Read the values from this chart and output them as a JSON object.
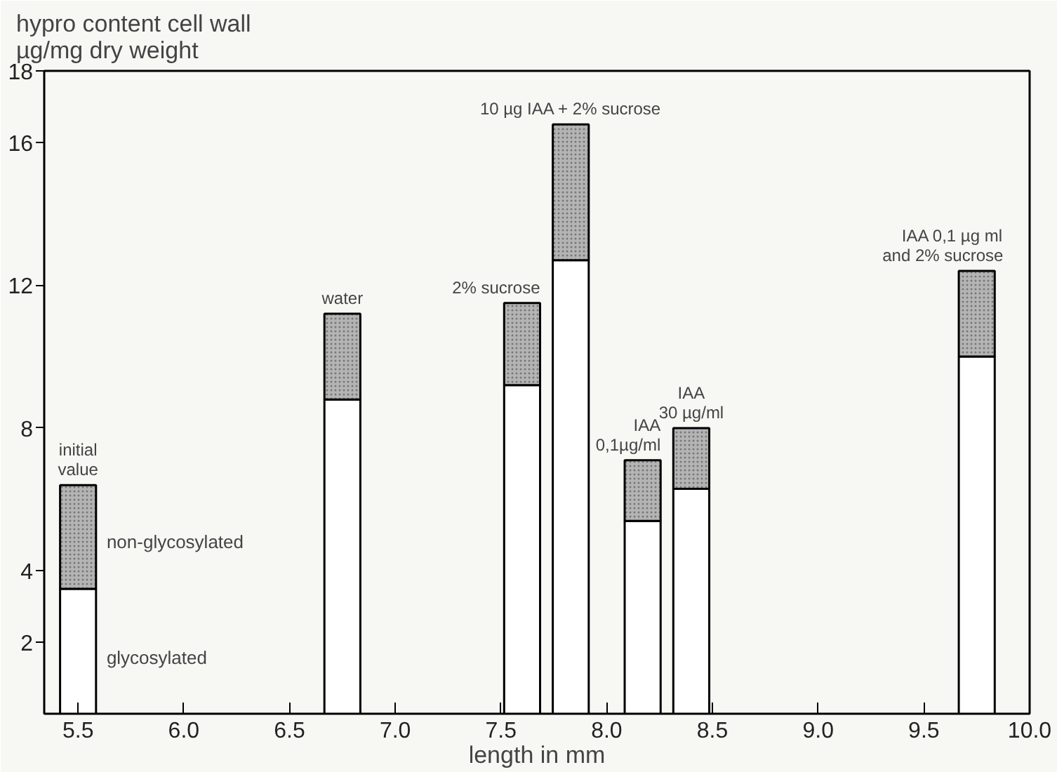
{
  "chart_data": {
    "type": "bar",
    "stacked": true,
    "ylabel": "hypro content cell wall\n   µg/mg dry weight",
    "xlabel": "length in mm",
    "x": [
      5.5,
      6.75,
      7.6,
      7.83,
      8.17,
      8.4,
      9.75
    ],
    "series": [
      {
        "name": "glycosylated",
        "color": "#ffffff",
        "values": [
          3.5,
          8.8,
          9.2,
          12.7,
          5.4,
          6.3,
          10.0
        ]
      },
      {
        "name": "non-glycosylated",
        "color": "#b4b4b4",
        "values": [
          2.9,
          2.4,
          2.3,
          3.8,
          1.7,
          1.7,
          2.4
        ]
      }
    ],
    "xlim": [
      5.34,
      10.0
    ],
    "ylim": [
      0,
      18
    ],
    "xticks": [
      {
        "value": 5.5,
        "label": "5.5"
      },
      {
        "value": 6.0,
        "label": "6.0"
      },
      {
        "value": 6.5,
        "label": "6.5"
      },
      {
        "value": 7.0,
        "label": "7.0"
      },
      {
        "value": 7.5,
        "label": "7.5"
      },
      {
        "value": 8.0,
        "label": "8.0"
      },
      {
        "value": 8.5,
        "label": "8.5"
      },
      {
        "value": 9.0,
        "label": "9.0"
      },
      {
        "value": 9.5,
        "label": "9.5"
      },
      {
        "value": 10.0,
        "label": "10.0"
      }
    ],
    "yticks": [
      2,
      4,
      8,
      12,
      16,
      18
    ],
    "annotations": [
      {
        "text": "initial\nvalue",
        "x": 5.5,
        "y": 6.4
      },
      {
        "text": "water",
        "x": 6.75,
        "y": 11.2
      },
      {
        "text": "2% sucrose",
        "x": 7.6,
        "y": 11.5
      },
      {
        "text": "10 µg IAA + 2% sucrose",
        "x": 7.83,
        "y": 16.5
      },
      {
        "text": "IAA\n0,1µg/ml",
        "x": 8.17,
        "y": 7.1
      },
      {
        "text": "IAA\n30 µg/ml",
        "x": 8.4,
        "y": 8.0
      },
      {
        "text": "IAA 0,1 µg ml\nand 2% sucrose",
        "x": 9.75,
        "y": 12.4
      }
    ]
  }
}
